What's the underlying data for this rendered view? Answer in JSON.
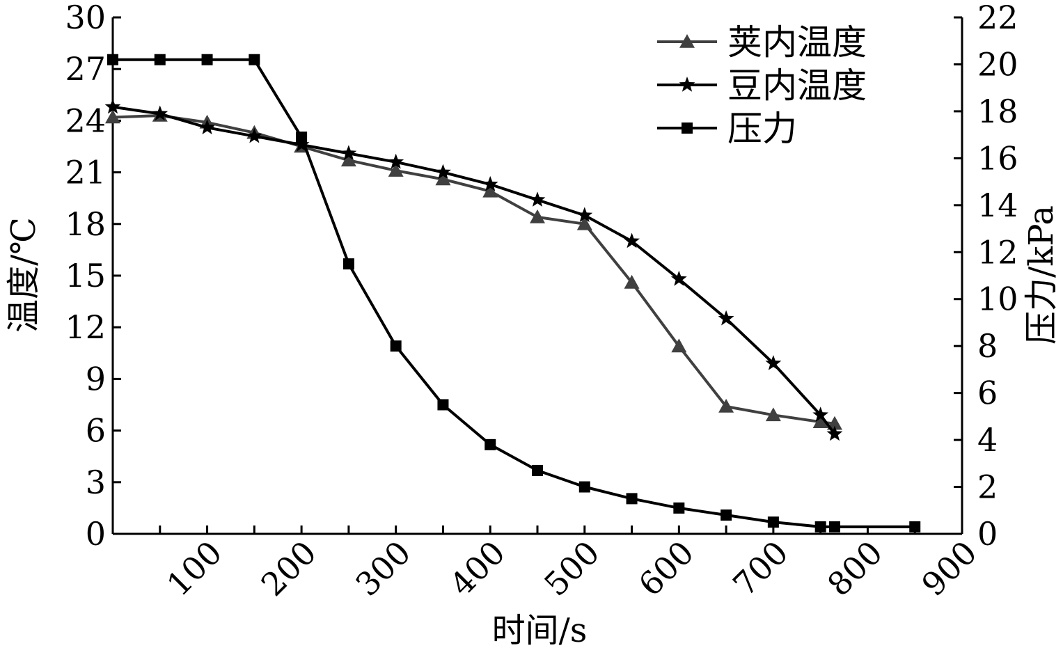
{
  "chart_data": {
    "type": "line",
    "xlabel": "时间/s",
    "ylabel_left": "温度/℃",
    "ylabel_right": "压力/kPa",
    "x_range": [
      0,
      900
    ],
    "x_ticks": [
      100,
      200,
      300,
      400,
      500,
      600,
      700,
      800,
      900
    ],
    "y_left_range": [
      0,
      30
    ],
    "y_left_ticks": [
      0,
      3,
      6,
      9,
      12,
      15,
      18,
      21,
      24,
      27,
      30
    ],
    "y_right_range": [
      0,
      22
    ],
    "y_right_ticks": [
      0,
      2,
      4,
      6,
      8,
      10,
      12,
      14,
      16,
      18,
      20,
      22
    ],
    "legend_position": "top-right",
    "grid": false,
    "series": [
      {
        "name": "荚内温度",
        "axis": "left",
        "marker": "triangle",
        "color": "#404040",
        "x": [
          0,
          50,
          100,
          150,
          200,
          250,
          300,
          350,
          400,
          450,
          500,
          550,
          600,
          650,
          700,
          750,
          765
        ],
        "y": [
          24.2,
          24.3,
          23.9,
          23.3,
          22.5,
          21.7,
          21.1,
          20.6,
          19.9,
          18.4,
          18.0,
          14.6,
          10.9,
          7.4,
          6.9,
          6.5,
          6.4
        ]
      },
      {
        "name": "豆内温度",
        "axis": "left",
        "marker": "star",
        "color": "#000000",
        "x": [
          0,
          50,
          100,
          150,
          200,
          250,
          300,
          350,
          400,
          450,
          500,
          550,
          600,
          650,
          700,
          750,
          765
        ],
        "y": [
          24.8,
          24.4,
          23.6,
          23.1,
          22.6,
          22.1,
          21.6,
          21.0,
          20.3,
          19.4,
          18.5,
          17.0,
          14.8,
          12.5,
          9.9,
          6.9,
          5.8
        ]
      },
      {
        "name": "压力",
        "axis": "right",
        "marker": "square",
        "color": "#000000",
        "x": [
          0,
          50,
          100,
          150,
          200,
          250,
          300,
          350,
          400,
          450,
          500,
          550,
          600,
          650,
          700,
          750,
          765,
          850
        ],
        "y": [
          20.2,
          20.2,
          20.2,
          20.2,
          16.9,
          11.5,
          8.0,
          5.5,
          3.8,
          2.7,
          2.0,
          1.5,
          1.1,
          0.8,
          0.5,
          0.3,
          0.3,
          0.3
        ]
      }
    ]
  }
}
